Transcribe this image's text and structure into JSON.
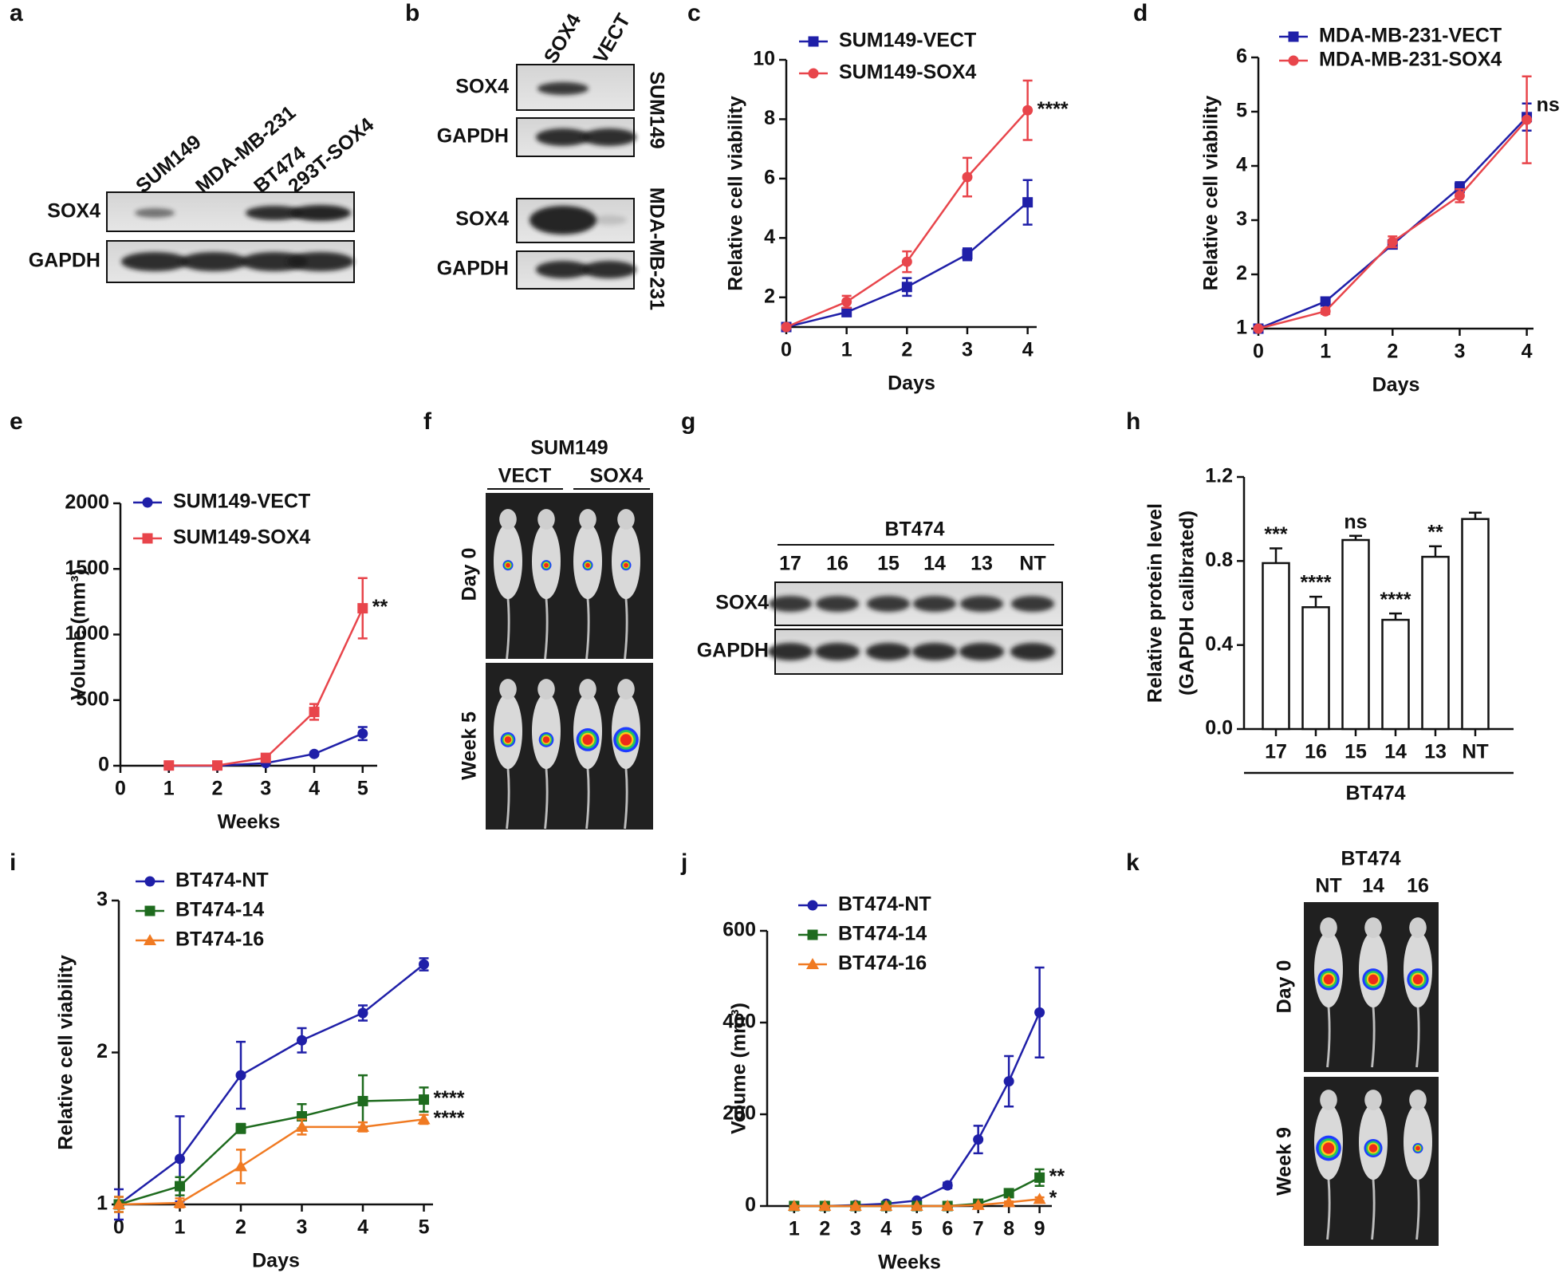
{
  "chart_data": [
    {
      "type": "line",
      "panel": "c",
      "x": [
        0,
        1,
        2,
        3,
        4
      ],
      "xlim": [
        0,
        4.15
      ],
      "xticks": [
        0,
        1,
        2,
        3,
        4
      ],
      "ylim": [
        1,
        10
      ],
      "yticks": [
        2,
        4,
        6,
        8,
        10
      ],
      "xlabel": "Days",
      "ylabel": "Relative cell viability",
      "series": [
        {
          "name": "SUM149-VECT",
          "color": "#1f1fa8",
          "marker": "square",
          "values": [
            1,
            1.5,
            2.35,
            3.45,
            5.2
          ],
          "errors": [
            0.05,
            0.08,
            0.3,
            0.2,
            0.75
          ]
        },
        {
          "name": "SUM149-SOX4",
          "color": "#e8454b",
          "marker": "circle",
          "values": [
            1,
            1.85,
            3.2,
            6.05,
            8.3
          ],
          "errors": [
            0.05,
            0.2,
            0.35,
            0.65,
            1.0
          ],
          "annotation": "****"
        }
      ]
    },
    {
      "type": "line",
      "panel": "d",
      "x": [
        0,
        1,
        2,
        3,
        4
      ],
      "xlim": [
        0,
        4.1
      ],
      "xticks": [
        0,
        1,
        2,
        3,
        4
      ],
      "ylim": [
        1,
        6
      ],
      "yticks": [
        1,
        2,
        3,
        4,
        5,
        6
      ],
      "xlabel": "Days",
      "ylabel": "Relative cell viability",
      "series": [
        {
          "name": "MDA-MB-231-VECT",
          "color": "#1f1fa8",
          "marker": "square",
          "values": [
            1,
            1.5,
            2.55,
            3.6,
            4.9
          ],
          "errors": [
            0.03,
            0.05,
            0.07,
            0.1,
            0.25
          ],
          "annotation": "ns"
        },
        {
          "name": "MDA-MB-231-SOX4",
          "color": "#e8454b",
          "marker": "circle",
          "values": [
            1,
            1.32,
            2.6,
            3.45,
            4.85
          ],
          "errors": [
            0.02,
            0.05,
            0.1,
            0.12,
            0.8
          ]
        }
      ]
    },
    {
      "type": "line",
      "panel": "e",
      "x": [
        1,
        2,
        3,
        4,
        5
      ],
      "xlim": [
        0,
        5.3
      ],
      "xticks": [
        0,
        1,
        2,
        3,
        4,
        5
      ],
      "ylim": [
        0,
        2000
      ],
      "yticks": [
        0,
        500,
        1000,
        1500,
        2000
      ],
      "xlabel": "Weeks",
      "ylabel": "Volume (mm³)",
      "series": [
        {
          "name": "SUM149-VECT",
          "color": "#1f1fa8",
          "marker": "circle",
          "values": [
            0,
            0,
            20,
            90,
            245
          ],
          "errors": [
            0,
            0,
            5,
            12,
            50
          ]
        },
        {
          "name": "SUM149-SOX4",
          "color": "#e8454b",
          "marker": "square",
          "values": [
            2,
            2,
            60,
            410,
            1200
          ],
          "errors": [
            0,
            0,
            12,
            60,
            230
          ],
          "annotation": "**"
        }
      ]
    },
    {
      "type": "bar",
      "panel": "h",
      "categories": [
        "17",
        "16",
        "15",
        "14",
        "13",
        "NT"
      ],
      "values": [
        0.79,
        0.58,
        0.9,
        0.52,
        0.82,
        1.0
      ],
      "errors": [
        0.07,
        0.05,
        0.02,
        0.03,
        0.05,
        0.03
      ],
      "annotations": [
        "***",
        "****",
        "ns",
        "****",
        "**",
        null
      ],
      "color": "#ffffff",
      "ylim": [
        0,
        1.2
      ],
      "yticks": [
        {
          "value": 0,
          "label": "0.0"
        },
        0.4,
        0.8,
        1.2
      ],
      "xlabel": "BT474",
      "ylabel": [
        "Relative protein level",
        "(GAPDH calibrated)"
      ]
    },
    {
      "type": "line",
      "panel": "i",
      "x": [
        0,
        1,
        2,
        3,
        4,
        5
      ],
      "xlim": [
        0,
        5.15
      ],
      "xticks": [
        0,
        1,
        2,
        3,
        4,
        5
      ],
      "ylim": [
        1,
        3
      ],
      "yticks": [
        1,
        2,
        3
      ],
      "xlabel": "Days",
      "ylabel": "Relative cell viability",
      "series": [
        {
          "name": "BT474-NT",
          "color": "#1f1fa8",
          "marker": "circle",
          "values": [
            1,
            1.3,
            1.85,
            2.08,
            2.26,
            2.58
          ],
          "errors": [
            0.1,
            0.28,
            0.22,
            0.08,
            0.05,
            0.04
          ]
        },
        {
          "name": "BT474-14",
          "color": "#1e6b1e",
          "marker": "square",
          "values": [
            1,
            1.12,
            1.5,
            1.58,
            1.68,
            1.69
          ],
          "errors": [
            0.05,
            0.06,
            0.03,
            0.08,
            0.17,
            0.08
          ],
          "annotation": "****"
        },
        {
          "name": "BT474-16",
          "color": "#f07a22",
          "marker": "triangle",
          "values": [
            1,
            1.01,
            1.25,
            1.51,
            1.51,
            1.56
          ],
          "errors": [
            0.05,
            0.03,
            0.11,
            0.05,
            0.03,
            0.03
          ],
          "annotation": "****"
        }
      ]
    },
    {
      "type": "line",
      "panel": "j",
      "x": [
        1,
        2,
        3,
        4,
        5,
        6,
        7,
        8,
        9
      ],
      "xlim": [
        0.12,
        9.4
      ],
      "xticks": [
        1,
        2,
        3,
        4,
        5,
        6,
        7,
        8,
        9
      ],
      "ylim": [
        0,
        600
      ],
      "yticks": [
        0,
        200,
        400,
        600
      ],
      "xlabel": "Weeks",
      "ylabel": "Volume (mm³)",
      "series": [
        {
          "name": "BT474-NT",
          "color": "#1f1fa8",
          "marker": "circle",
          "values": [
            0,
            0,
            2,
            5,
            12,
            45,
            145,
            272,
            422
          ],
          "errors": [
            0,
            0,
            1,
            2,
            3,
            6,
            30,
            55,
            98
          ]
        },
        {
          "name": "BT474-14",
          "color": "#1e6b1e",
          "marker": "square",
          "values": [
            0,
            0,
            0,
            0,
            0,
            0,
            5,
            28,
            62
          ],
          "errors": [
            0,
            0,
            0,
            0,
            0,
            0,
            3,
            5,
            18
          ],
          "annotation": "**"
        },
        {
          "name": "BT474-16",
          "color": "#f07a22",
          "marker": "triangle",
          "values": [
            0,
            0,
            0,
            0,
            0,
            0,
            2,
            8,
            15
          ],
          "errors": [
            0,
            0,
            0,
            0,
            0,
            0,
            1,
            2,
            4
          ],
          "annotation": "*"
        }
      ]
    }
  ],
  "blots": [
    {
      "panel": "a",
      "lanes": [
        "SUM149",
        "MDA-MB-231",
        "BT474",
        "293T-SOX4"
      ],
      "rows": [
        "SOX4",
        "GAPDH"
      ]
    },
    {
      "panel": "b",
      "lanes": [
        "SOX4",
        "VECT"
      ],
      "rows": [
        "SOX4",
        "GAPDH",
        "SOX4",
        "GAPDH"
      ],
      "groups": [
        "SUM149",
        "MDA-MB-231"
      ]
    },
    {
      "panel": "g",
      "title": "BT474",
      "lanes": [
        "17",
        "16",
        "15",
        "14",
        "13",
        "NT"
      ],
      "rows": [
        "SOX4",
        "GAPDH"
      ]
    }
  ],
  "imaging": [
    {
      "panel": "f",
      "title": "SUM149",
      "groups": [
        "VECT",
        "SOX4"
      ],
      "timepoints": [
        "Day 0",
        "Week 5"
      ]
    },
    {
      "panel": "k",
      "title": "BT474",
      "lanes": [
        "NT",
        "14",
        "16"
      ],
      "timepoints": [
        "Day 0",
        "Week 9"
      ]
    }
  ]
}
